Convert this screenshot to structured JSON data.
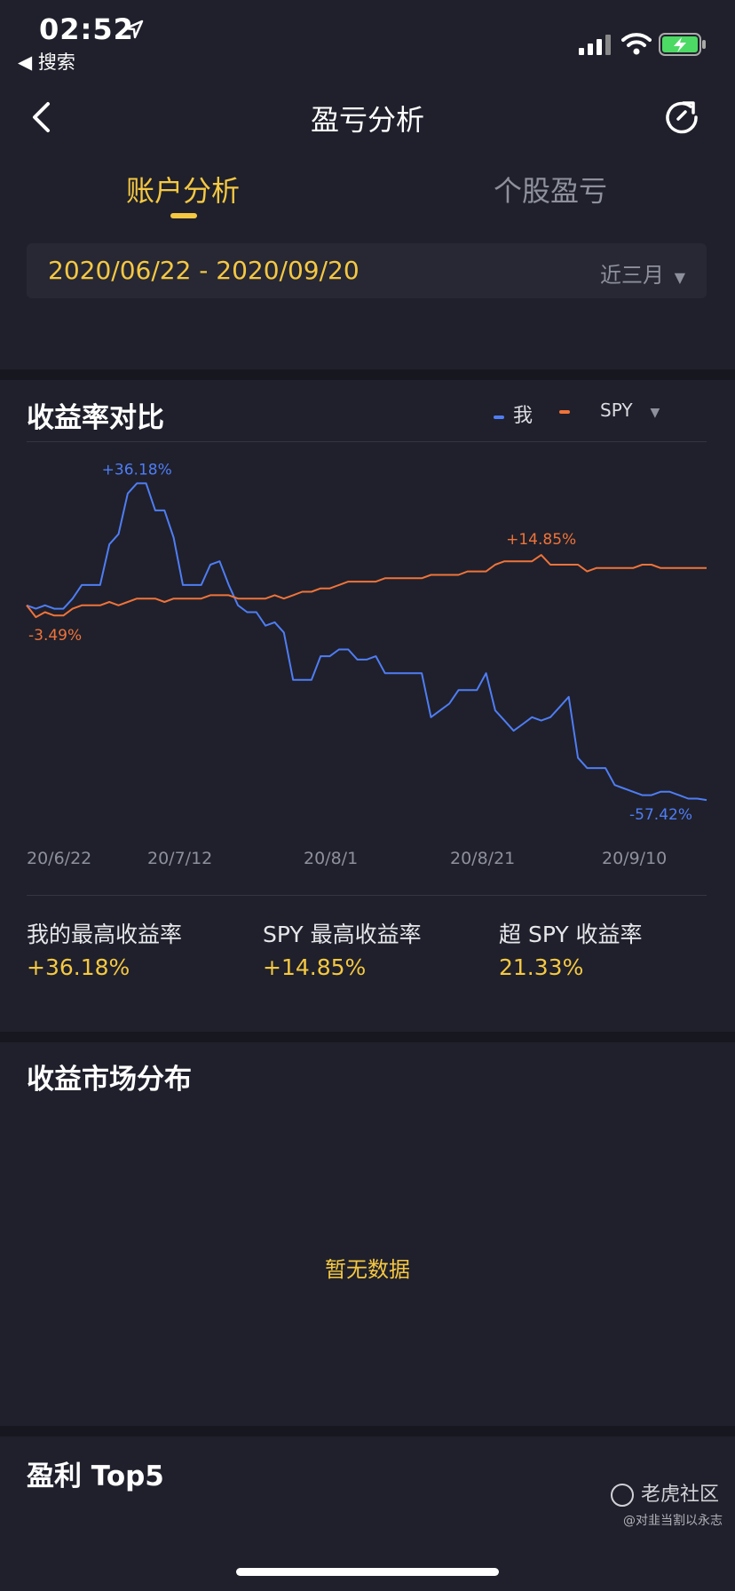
{
  "status_bar": {
    "time": "02:52",
    "back_label": "◀ 搜索"
  },
  "nav": {
    "title": "盈亏分析"
  },
  "tabs": [
    {
      "label": "账户分析"
    },
    {
      "label": "个股盈亏"
    }
  ],
  "date_filter": {
    "range": "2020/06/22 - 2020/09/20",
    "select": "近三月"
  },
  "chart_section": {
    "title": "收益率对比",
    "legend_me": "我",
    "legend_benchmark": "SPY"
  },
  "chart_data": {
    "type": "line",
    "x_ticks": [
      "20/6/22",
      "20/7/12",
      "20/8/1",
      "20/8/21",
      "20/9/10"
    ],
    "series": [
      {
        "name": "我",
        "color": "#4f7df5",
        "values": [
          0,
          -1,
          0,
          -1,
          -1,
          2,
          6,
          6,
          6,
          18,
          21,
          33,
          36,
          36,
          28,
          28,
          20,
          6,
          6,
          6,
          12,
          13,
          6,
          0,
          -2,
          -2,
          -6,
          -5,
          -8,
          -22,
          -22,
          -22,
          -15,
          -15,
          -13,
          -13,
          -16,
          -16,
          -15,
          -20,
          -20,
          -20,
          -20,
          -20,
          -33,
          -31,
          -29,
          -25,
          -25,
          -25,
          -20,
          -31,
          -34,
          -37,
          -35,
          -33,
          -34,
          -33,
          -30,
          -27,
          -45,
          -48,
          -48,
          -48,
          -53,
          -54,
          -55,
          -56,
          -56,
          -55,
          -55,
          -56,
          -57,
          -57,
          -57.42
        ]
      },
      {
        "name": "SPY",
        "color": "#f0733a",
        "values": [
          0,
          -3.49,
          -2,
          -3,
          -3,
          -1,
          0,
          0,
          0,
          1,
          0,
          1,
          2,
          2,
          2,
          1,
          2,
          2,
          2,
          2,
          3,
          3,
          3,
          2,
          2,
          2,
          2,
          3,
          2,
          3,
          4,
          4,
          5,
          5,
          6,
          7,
          7,
          7,
          7,
          8,
          8,
          8,
          8,
          8,
          9,
          9,
          9,
          9,
          10,
          10,
          10,
          12,
          13,
          13,
          13,
          13,
          14.85,
          12,
          12,
          12,
          12,
          10,
          11,
          11,
          11,
          11,
          11,
          12,
          12,
          11,
          11,
          11,
          11,
          11,
          11
        ]
      }
    ],
    "annotations": {
      "me_max": "+36.18%",
      "me_end": "-57.42%",
      "spy_max": "+14.85%",
      "spy_min": "-3.49%"
    },
    "ylim": [
      -65,
      45
    ],
    "grid": false,
    "legend_placement": "top-right"
  },
  "stats": [
    {
      "label": "我的最高收益率",
      "value": "+36.18%"
    },
    {
      "label": "SPY 最高收益率",
      "value": "+14.85%"
    },
    {
      "label": "超 SPY 收益率",
      "value": "21.33%"
    }
  ],
  "market_section": {
    "title": "收益市场分布",
    "empty": "暂无数据"
  },
  "top5_section": {
    "title": "盈利 Top5"
  },
  "watermark": {
    "brand": "老虎社区",
    "user": "@对韭当割以永志"
  }
}
